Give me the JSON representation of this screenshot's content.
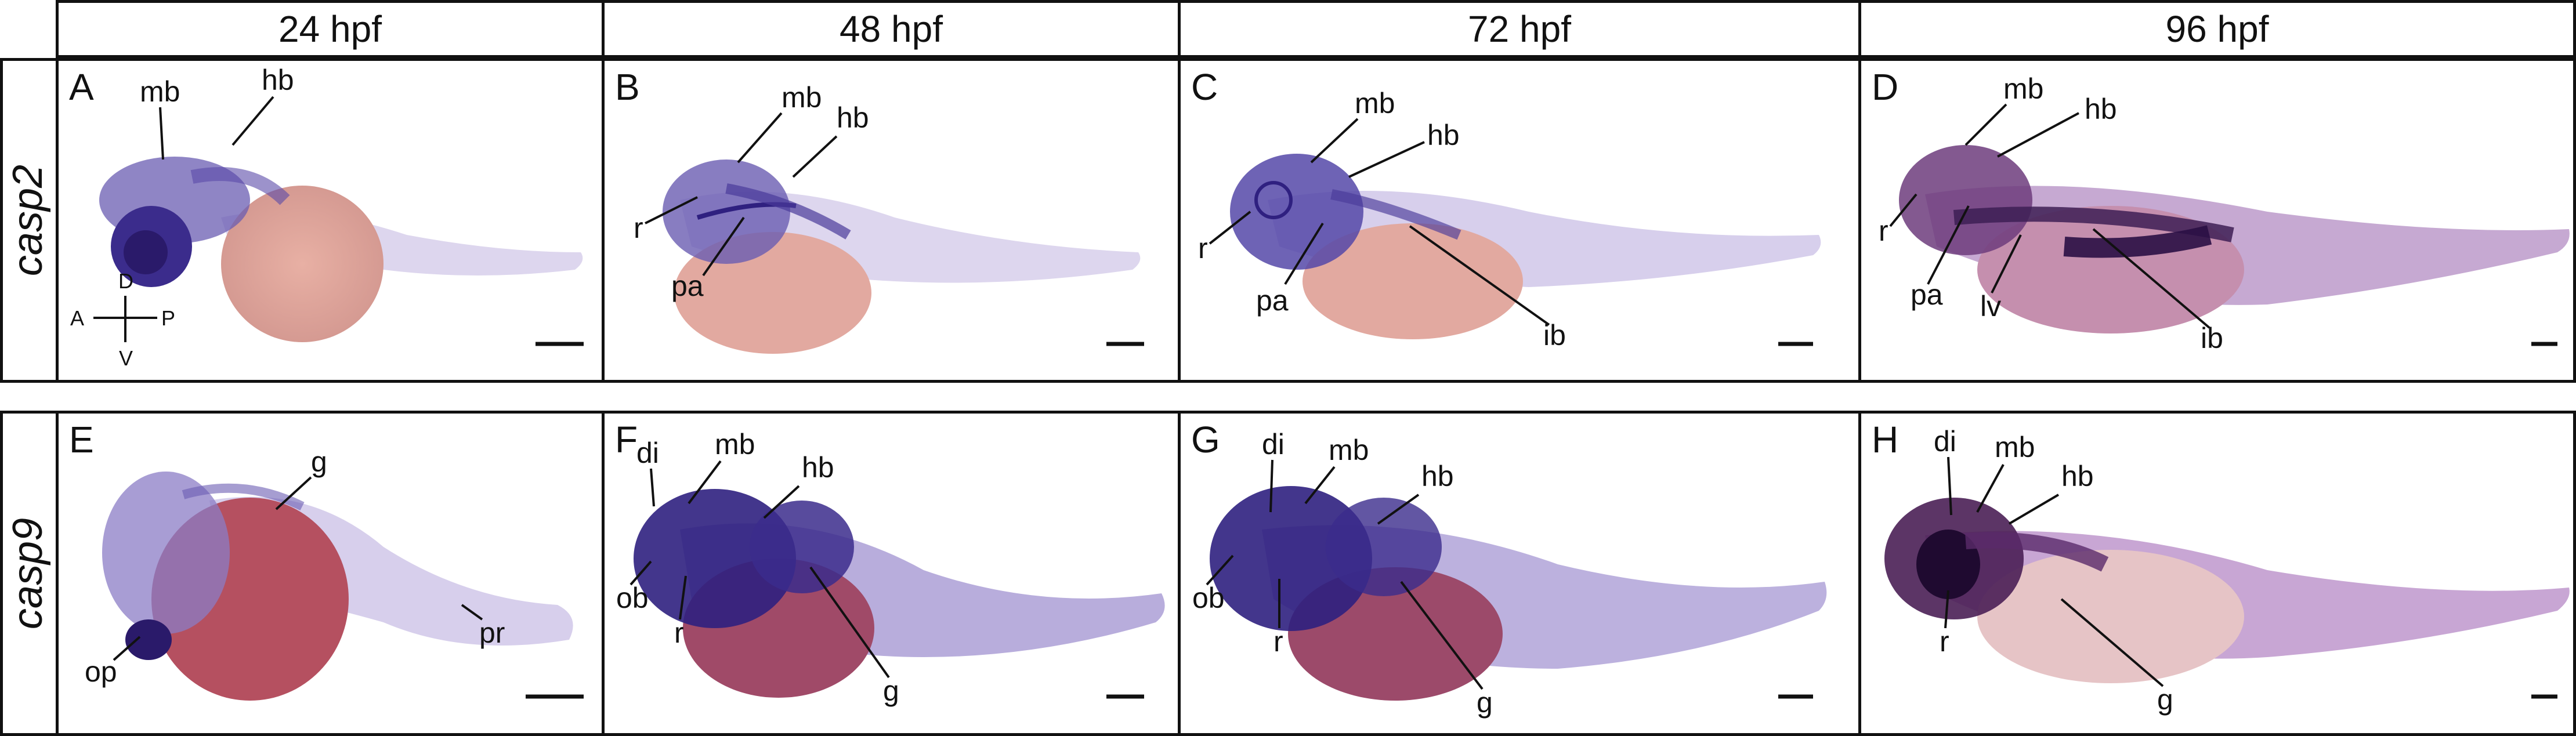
{
  "columns": [
    "24 hpf",
    "48 hpf",
    "72 hpf",
    "96 hpf"
  ],
  "rows": [
    {
      "gene": "casp2",
      "panels": [
        "A",
        "B",
        "C",
        "D"
      ]
    },
    {
      "gene": "casp9",
      "panels": [
        "E",
        "F",
        "G",
        "H"
      ]
    }
  ],
  "orientation": {
    "dorsal": "D",
    "ventral": "V",
    "anterior": "A",
    "posterior": "P"
  },
  "labels": {
    "A": [
      "mb",
      "hb"
    ],
    "B": [
      "mb",
      "hb",
      "r",
      "pa"
    ],
    "C": [
      "mb",
      "hb",
      "r",
      "pa",
      "ib"
    ],
    "D": [
      "mb",
      "hb",
      "r",
      "pa",
      "lv",
      "ib"
    ],
    "E": [
      "g",
      "op",
      "pr"
    ],
    "F": [
      "di",
      "mb",
      "hb",
      "ob",
      "r",
      "g"
    ],
    "G": [
      "di",
      "mb",
      "hb",
      "ob",
      "r",
      "g"
    ],
    "H": [
      "di",
      "mb",
      "hb",
      "r",
      "g"
    ]
  },
  "colors": {
    "stain": "#4a3a9a",
    "stain_dark": "#2a1a6a",
    "yolk_row1": "#e2a9a0",
    "yolk_row2": "#b55060",
    "body": "#cfc8e6",
    "border": "#111111"
  }
}
